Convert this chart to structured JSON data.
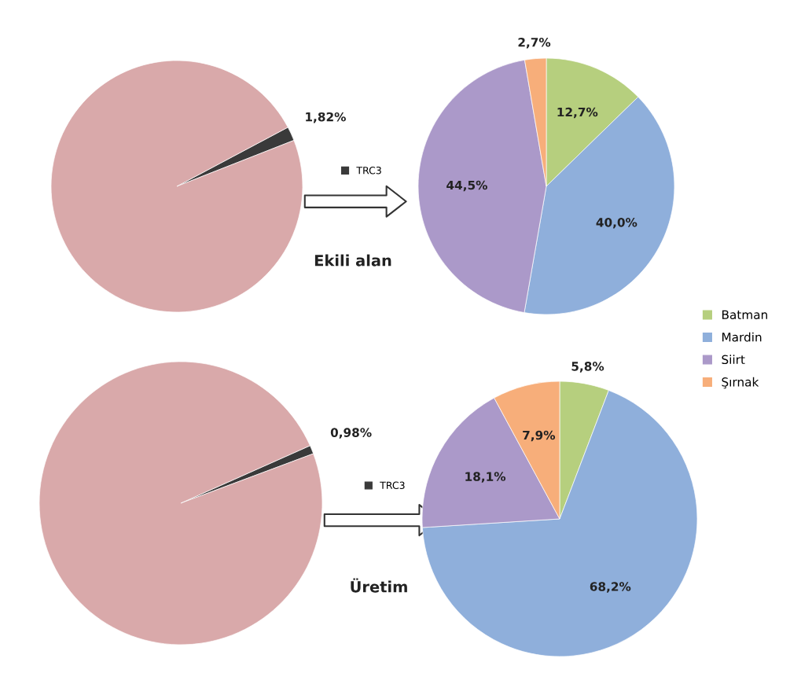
{
  "chart_data": [
    {
      "type": "pie",
      "categories": [
        "TRC3",
        null
      ],
      "values": [
        1.82,
        98.18
      ],
      "colors": [
        "#3a3a3a",
        "#d9a9aa"
      ],
      "value_labels": [
        "1,82%",
        null
      ],
      "legend": "right",
      "annotations": [
        "Ekili alan"
      ]
    },
    {
      "type": "pie",
      "categories": [
        "Batman",
        "Mardin",
        "Siirt",
        "Şırnak"
      ],
      "values": [
        12.7,
        40.0,
        44.5,
        2.7
      ],
      "colors": [
        "#b6cf7e",
        "#8fafdb",
        "#ab99c9",
        "#f7ae7a"
      ],
      "value_labels": [
        "12,7%",
        "40,0%",
        "44,5%",
        "2,7%"
      ],
      "legend": "bottom right"
    },
    {
      "type": "pie",
      "categories": [
        "TRC3",
        null
      ],
      "values": [
        0.98,
        99.02
      ],
      "colors": [
        "#3a3a3a",
        "#d9a9aa"
      ],
      "value_labels": [
        "0,98%",
        null
      ],
      "legend": "right",
      "annotations": [
        "Üretim"
      ]
    },
    {
      "type": "pie",
      "categories": [
        null,
        null,
        null,
        null
      ],
      "values": [
        5.8,
        68.2,
        18.1,
        7.9
      ],
      "colors": [
        "#b6cf7e",
        "#8fafdb",
        "#ab99c9",
        "#f7ae7a"
      ],
      "value_labels": [
        "5,8%",
        "68,2%",
        "18,1%",
        "7,9%"
      ]
    }
  ]
}
